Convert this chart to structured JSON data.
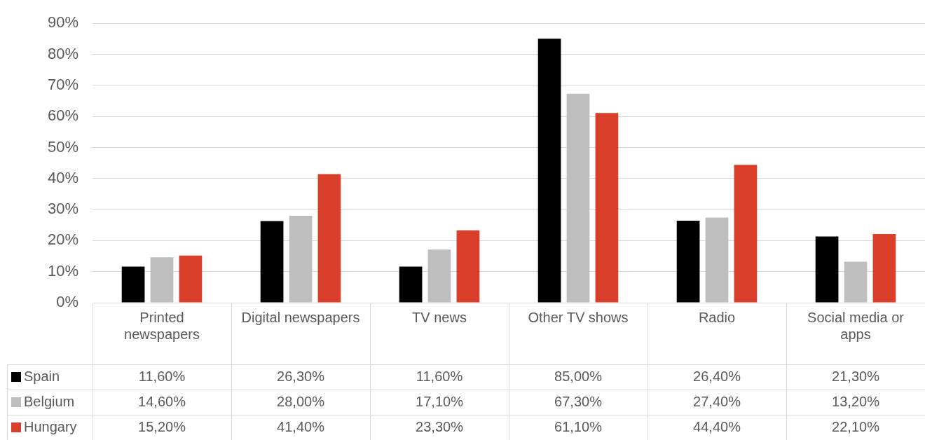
{
  "chart_data": {
    "type": "bar",
    "categories": [
      "Printed newspapers",
      "Digital newspapers",
      "TV news",
      "Other TV shows",
      "Radio",
      "Social media or apps"
    ],
    "series": [
      {
        "name": "Spain",
        "color": "#000000",
        "values": [
          11.6,
          26.3,
          11.6,
          85.0,
          26.4,
          21.3
        ],
        "value_labels": [
          "11,60%",
          "26,30%",
          "11,60%",
          "85,00%",
          "26,40%",
          "21,30%"
        ]
      },
      {
        "name": "Belgium",
        "color": "#bfbebf",
        "values": [
          14.6,
          28.0,
          17.1,
          67.3,
          27.4,
          13.2
        ],
        "value_labels": [
          "14,60%",
          "28,00%",
          "17,10%",
          "67,30%",
          "27,40%",
          "13,20%"
        ]
      },
      {
        "name": "Hungary",
        "color": "#d93f2b",
        "values": [
          15.2,
          41.4,
          23.3,
          61.1,
          44.4,
          22.1
        ],
        "value_labels": [
          "15,20%",
          "41,40%",
          "23,30%",
          "61,10%",
          "44,40%",
          "22,10%"
        ]
      }
    ],
    "ylim": [
      0,
      90
    ],
    "yticks": [
      {
        "value": 0,
        "label": "0%"
      },
      {
        "value": 10,
        "label": "10%"
      },
      {
        "value": 20,
        "label": "20%"
      },
      {
        "value": 30,
        "label": "30%"
      },
      {
        "value": 40,
        "label": "40%"
      },
      {
        "value": 50,
        "label": "50%"
      },
      {
        "value": 60,
        "label": "60%"
      },
      {
        "value": 70,
        "label": "70%"
      },
      {
        "value": 80,
        "label": "80%"
      },
      {
        "value": 90,
        "label": "90%"
      }
    ],
    "grid": "y",
    "legend": "bottom"
  }
}
